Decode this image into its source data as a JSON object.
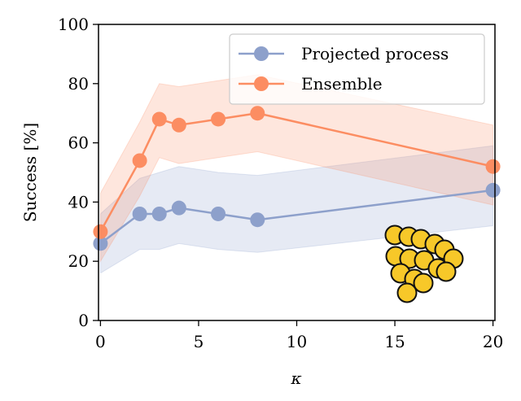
{
  "chart_data": {
    "type": "line",
    "title": "",
    "xlabel": "κ",
    "ylabel": "Success [%]",
    "xlim": [
      -0.1,
      20.1
    ],
    "ylim": [
      0,
      100
    ],
    "xticks": [
      0,
      5,
      10,
      15,
      20
    ],
    "yticks": [
      0,
      20,
      40,
      60,
      80,
      100
    ],
    "grid": false,
    "legend_position": "top-right",
    "series": [
      {
        "name": "Projected process",
        "color": "#8da0cb",
        "x": [
          0,
          2,
          3,
          4,
          6,
          8,
          20
        ],
        "values": [
          26,
          36,
          36,
          38,
          36,
          34,
          44
        ],
        "lower": [
          16,
          24,
          24,
          26,
          24,
          23,
          32
        ],
        "upper": [
          36,
          48,
          50,
          52,
          50,
          49,
          59
        ]
      },
      {
        "name": "Ensemble",
        "color": "#fc8d62",
        "x": [
          0,
          2,
          3,
          4,
          6,
          8,
          20
        ],
        "values": [
          30,
          54,
          68,
          66,
          68,
          70,
          52
        ],
        "lower": [
          20,
          42,
          55,
          53,
          55,
          57,
          39
        ],
        "upper": [
          43,
          67,
          80,
          79,
          81,
          83,
          66
        ]
      }
    ]
  }
}
